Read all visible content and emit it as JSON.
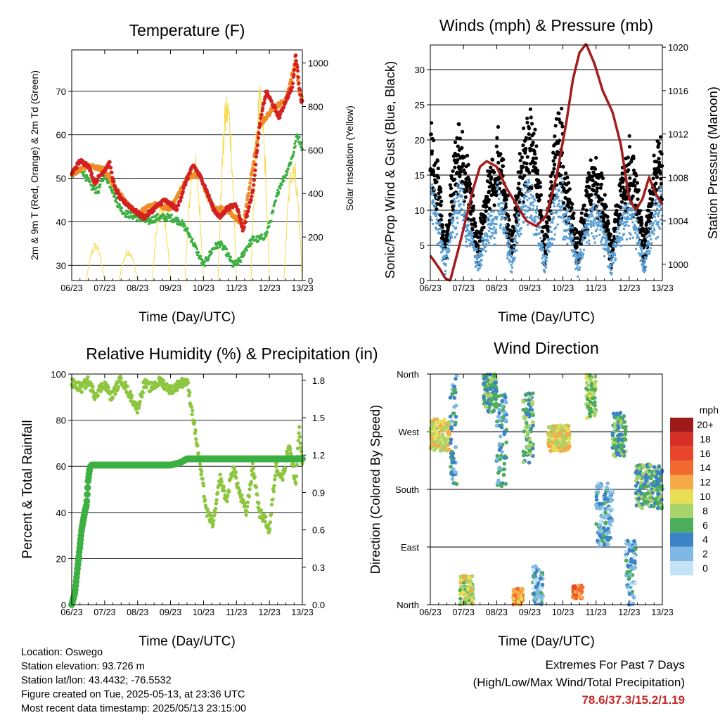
{
  "x_ticks": [
    "06/23",
    "07/23",
    "08/23",
    "09/23",
    "10/23",
    "11/23",
    "12/23",
    "13/23"
  ],
  "x_label": "Time (Day/UTC)",
  "colors": {
    "temp_red": "#d32020",
    "temp_orange": "#f08c28",
    "dewpoint_green": "#3cb043",
    "solar_yellow": "#f5dc50",
    "wind_black": "#000000",
    "wind_blue": "#5a9fd4",
    "pressure_maroon": "#a31d1d",
    "rh_green": "#8dc63f",
    "precip_green": "#3cb043",
    "extreme_red": "#c62828"
  },
  "chart_data": [
    {
      "type": "line",
      "title": "Temperature (F)",
      "xlabel": "Time (Day/UTC)",
      "ylabel": "2m & 9m T (Red, Orange) & 2m Td (Green)",
      "y2label": "Solar Insolation (Yellow)",
      "x_range_days": [
        6,
        13
      ],
      "ylim": [
        26.5,
        79.5
      ],
      "y_ticks": [
        30,
        40,
        50,
        60,
        70
      ],
      "y2lim": [
        0,
        1060
      ],
      "y2_ticks": [
        0,
        200,
        400,
        600,
        800,
        1000
      ],
      "series": [
        {
          "key": "temp",
          "color": "#d32020",
          "x": [
            6.0,
            6.25,
            6.5,
            6.7,
            7.0,
            7.15,
            7.3,
            7.5,
            7.7,
            8.0,
            8.2,
            8.5,
            8.8,
            9.0,
            9.2,
            9.5,
            9.7,
            9.85,
            10.0,
            10.3,
            10.5,
            10.7,
            11.0,
            11.2,
            11.5,
            11.7,
            11.9,
            12.1,
            12.3,
            12.5,
            12.7,
            12.8,
            12.87,
            12.95,
            13.0
          ],
          "y": [
            51,
            54,
            53,
            49,
            52,
            53.5,
            48,
            45,
            44,
            42,
            41,
            43,
            45,
            44,
            43,
            50,
            53,
            51,
            49,
            43,
            41,
            43,
            44,
            38,
            47,
            62,
            70,
            67,
            64,
            68,
            71,
            78.6,
            74,
            68,
            68
          ]
        },
        {
          "key": "temp9m",
          "color": "#f08c28",
          "x": [
            6.0,
            6.5,
            7.0,
            7.3,
            7.7,
            8.0,
            8.5,
            9.0,
            9.5,
            9.85,
            10.3,
            10.7,
            11.2,
            11.7,
            12.1,
            12.5,
            12.8,
            12.9,
            13.0
          ],
          "y": [
            51,
            53,
            52,
            48,
            44,
            42,
            44,
            43,
            50,
            51,
            43,
            43,
            39,
            62,
            66,
            68,
            77,
            70,
            68
          ]
        },
        {
          "key": "dewpoint",
          "color": "#3cb043",
          "x": [
            6.0,
            6.3,
            6.6,
            6.8,
            7.0,
            7.2,
            7.4,
            7.6,
            8.0,
            8.3,
            8.6,
            9.0,
            9.3,
            9.5,
            9.7,
            10.0,
            10.3,
            10.5,
            10.7,
            10.9,
            11.1,
            11.3,
            11.5,
            11.7,
            11.9,
            12.1,
            12.3,
            12.5,
            12.7,
            12.85,
            12.95,
            13.0
          ],
          "y": [
            51,
            52,
            48,
            47,
            51,
            48,
            44,
            42,
            41,
            40,
            41,
            41,
            40,
            38,
            35,
            30,
            34,
            35,
            33,
            30,
            31,
            34,
            36,
            36,
            37,
            42,
            48,
            51,
            55,
            60,
            58,
            57
          ]
        },
        {
          "key": "solar",
          "values_by_day": [
            180,
            150,
            370,
            600,
            890,
            900,
            600
          ]
        }
      ]
    },
    {
      "type": "scatter",
      "title": "Winds (mph) & Pressure (mb)",
      "xlabel": "Time (Day/UTC)",
      "ylabel": "Sonic/Prop Wind & Gust (Blue, Black)",
      "y2label": "Station Pressure (Maroon)",
      "x_range_days": [
        6,
        13
      ],
      "ylim": [
        0,
        33.5
      ],
      "y_ticks": [
        0,
        5,
        10,
        15,
        20,
        25,
        30
      ],
      "y2lim": [
        998.5,
        1020.2
      ],
      "y2_ticks": [
        1000,
        1004,
        1008,
        1012,
        1016,
        1020
      ],
      "wind_daily_peaks": [
        15,
        11,
        15,
        15,
        12,
        12,
        13
      ],
      "gust_daily_peaks": [
        22,
        18,
        22,
        24,
        17,
        17,
        20
      ],
      "pressure": {
        "x": [
          6.0,
          6.3,
          6.45,
          6.6,
          6.9,
          7.1,
          7.3,
          7.5,
          7.7,
          8.0,
          8.3,
          8.6,
          8.9,
          9.2,
          9.5,
          9.8,
          10.1,
          10.3,
          10.5,
          10.7,
          10.95,
          11.2,
          11.5,
          11.75,
          11.9,
          12.0,
          12.2,
          12.4,
          12.6,
          12.8,
          13.0
        ],
        "y": [
          1000.8,
          999.5,
          998.7,
          998.5,
          1002,
          1004.5,
          1007,
          1009,
          1009.5,
          1009,
          1007,
          1005.5,
          1004,
          1003.5,
          1004.5,
          1008,
          1013,
          1017,
          1019.5,
          1020.3,
          1018.5,
          1016,
          1014,
          1011,
          1008,
          1006,
          1005,
          1006,
          1008,
          1006.5,
          1005.5
        ]
      }
    },
    {
      "type": "line",
      "title": "Relative Humidity (%) & Precipitation (in)",
      "xlabel": "Time (Day/UTC)",
      "ylabel": "Percent & Total Rainfall",
      "x_range_days": [
        6,
        13
      ],
      "ylim": [
        0,
        100
      ],
      "y_ticks": [
        0,
        20,
        40,
        60,
        80,
        100
      ],
      "y2lim": [
        0,
        1.85
      ],
      "y2_ticks": [
        "0.0",
        "0.3",
        "0.6",
        "0.9",
        "1.2",
        "1.5",
        "1.8"
      ],
      "series": [
        {
          "key": "rh",
          "color": "#8dc63f",
          "x": [
            6.0,
            6.3,
            6.5,
            6.7,
            7.0,
            7.2,
            7.5,
            7.8,
            8.0,
            8.2,
            8.4,
            8.7,
            9.0,
            9.3,
            9.5,
            9.7,
            9.9,
            10.1,
            10.3,
            10.5,
            10.7,
            10.9,
            11.1,
            11.3,
            11.5,
            11.7,
            11.9,
            12.0,
            12.2,
            12.4,
            12.6,
            12.8,
            12.9,
            13.0
          ],
          "y": [
            96,
            94,
            97,
            91,
            96,
            90,
            98,
            90,
            85,
            96,
            94,
            97,
            93,
            96,
            97,
            80,
            60,
            40,
            35,
            55,
            45,
            60,
            48,
            40,
            60,
            40,
            36,
            32,
            60,
            55,
            70,
            52,
            77,
            60
          ]
        },
        {
          "key": "precip",
          "color": "#3cb043",
          "x": [
            6.0,
            6.1,
            6.2,
            6.3,
            6.4,
            6.45,
            6.5,
            6.55,
            6.6,
            7.0,
            8.0,
            9.0,
            9.3,
            9.5,
            10.0,
            11.0,
            12.0,
            13.0
          ],
          "y": [
            0.0,
            0.1,
            0.35,
            0.6,
            0.75,
            0.8,
            1.0,
            1.1,
            1.12,
            1.12,
            1.12,
            1.12,
            1.14,
            1.17,
            1.17,
            1.17,
            1.17,
            1.17
          ]
        }
      ]
    },
    {
      "type": "scatter",
      "title": "Wind Direction",
      "xlabel": "Time (Day/UTC)",
      "ylabel": "Direction (Colored By Speed)",
      "x_range_days": [
        6,
        13
      ],
      "ylim": [
        0,
        360
      ],
      "y_ticks": [
        "North",
        "East",
        "South",
        "West",
        "North"
      ],
      "legend": {
        "unit": "mph",
        "labels": [
          "20+",
          "18",
          "16",
          "14",
          "12",
          "10",
          "8",
          "6",
          "4",
          "2",
          "0"
        ],
        "colors": [
          "#9e1a1a",
          "#d62f26",
          "#e8462a",
          "#f26a30",
          "#f7a848",
          "#e9de55",
          "#a9d36b",
          "#4cad5d",
          "#3b83c4",
          "#7fb8e2",
          "#c4e3f6"
        ]
      },
      "clusters": [
        {
          "x": [
            6.0,
            6.6
          ],
          "dir": [
            240,
            290
          ],
          "speed": 10
        },
        {
          "x": [
            6.6,
            6.8
          ],
          "dir": [
            180,
            360
          ],
          "speed": 4
        },
        {
          "x": [
            6.9,
            7.3
          ],
          "dir": [
            0,
            45
          ],
          "speed": 9
        },
        {
          "x": [
            7.6,
            8.0
          ],
          "dir": [
            300,
            360
          ],
          "speed": 6
        },
        {
          "x": [
            8.0,
            8.3
          ],
          "dir": [
            180,
            330
          ],
          "speed": 4
        },
        {
          "x": [
            8.5,
            8.8
          ],
          "dir": [
            0,
            25
          ],
          "speed": 12
        },
        {
          "x": [
            8.8,
            9.1
          ],
          "dir": [
            220,
            330
          ],
          "speed": 6
        },
        {
          "x": [
            9.1,
            9.4
          ],
          "dir": [
            0,
            60
          ],
          "speed": 3
        },
        {
          "x": [
            9.55,
            10.2
          ],
          "dir": [
            240,
            280
          ],
          "speed": 10
        },
        {
          "x": [
            10.3,
            10.6
          ],
          "dir": [
            10,
            30
          ],
          "speed": 14
        },
        {
          "x": [
            10.7,
            11.0
          ],
          "dir": [
            290,
            360
          ],
          "speed": 8
        },
        {
          "x": [
            11.0,
            11.5
          ],
          "dir": [
            90,
            190
          ],
          "speed": 3
        },
        {
          "x": [
            11.5,
            11.9
          ],
          "dir": [
            230,
            300
          ],
          "speed": 6
        },
        {
          "x": [
            11.9,
            12.2
          ],
          "dir": [
            0,
            100
          ],
          "speed": 3
        },
        {
          "x": [
            12.2,
            13.0
          ],
          "dir": [
            150,
            220
          ],
          "speed": 6
        }
      ]
    }
  ],
  "info": {
    "location": "Location: Oswego",
    "elevation": "Station elevation: 93.726 m",
    "latlon": "Station lat/lon: 43.4432; -76.5532",
    "created": "Figure created on Tue, 2025-05-13, at 23:36 UTC",
    "recent": "Most recent data timestamp: 2025/05/13 23:15:00"
  },
  "extremes": {
    "title": "Extremes For Past 7 Days",
    "subtitle": "(High/Low/Max Wind/Total Precipitation)",
    "values": "78.6/37.3/15.2/1.19"
  }
}
